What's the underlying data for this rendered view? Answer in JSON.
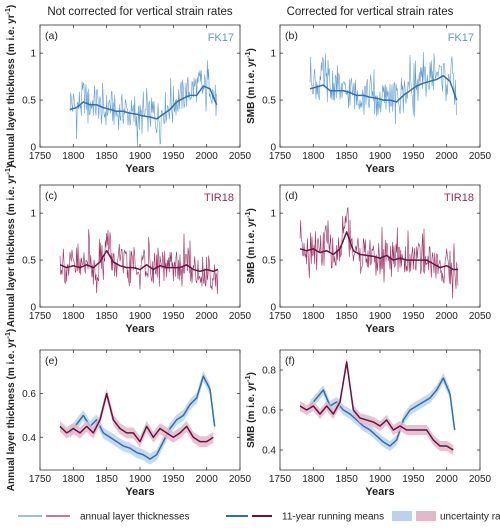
{
  "figure": {
    "column_titles": [
      "Not corrected for vertical strain rates",
      "Corrected for vertical strain rates"
    ],
    "legend": {
      "items": [
        {
          "label": "annual layer thicknesses",
          "kind": "thin-lines"
        },
        {
          "label": "11-year running means",
          "kind": "thick-line"
        },
        {
          "label": "uncertainty ranges",
          "kind": "patches"
        }
      ]
    },
    "colors": {
      "fk17": "#5b9bd5",
      "fk17_mean": "#2f6db5",
      "fk17_band": "#b9d3ee",
      "tir18": "#9b2a5e",
      "tir18_mean": "#6e1040",
      "tir18_band": "#e3b8ca"
    }
  },
  "chart_data": [
    {
      "id": "a",
      "type": "line",
      "panel_label": "(a)",
      "core_label": "FK17",
      "xlabel": "Years",
      "ylabel": "Annual layer thickness (m i.e. yr⁻¹)",
      "xlim": [
        1750,
        2050
      ],
      "ylim": [
        0,
        1.3
      ],
      "xticks": [
        1750,
        1800,
        1850,
        1900,
        1950,
        2000,
        2050
      ],
      "yticks": [
        0,
        0.5,
        1
      ],
      "series": [
        {
          "kind": "annual",
          "color": "fk17",
          "x": [
            1795,
            1805,
            1815,
            1825,
            1835,
            1845,
            1855,
            1865,
            1875,
            1885,
            1895,
            1905,
            1915,
            1925,
            1935,
            1945,
            1955,
            1965,
            1975,
            1985,
            1995,
            2005,
            2015
          ],
          "y": [
            0.5,
            0.4,
            0.55,
            0.45,
            0.5,
            0.35,
            0.45,
            0.35,
            0.4,
            0.35,
            0.3,
            0.3,
            0.35,
            0.3,
            0.4,
            0.45,
            0.5,
            0.55,
            0.6,
            0.65,
            0.6,
            0.7,
            0.45
          ]
        },
        {
          "kind": "mean",
          "color": "fk17_mean",
          "x": [
            1795,
            1805,
            1815,
            1825,
            1835,
            1845,
            1855,
            1865,
            1875,
            1885,
            1895,
            1905,
            1915,
            1925,
            1935,
            1945,
            1955,
            1965,
            1975,
            1985,
            1995,
            2005,
            2015
          ],
          "y": [
            0.4,
            0.42,
            0.48,
            0.45,
            0.45,
            0.42,
            0.4,
            0.38,
            0.38,
            0.36,
            0.35,
            0.33,
            0.32,
            0.3,
            0.35,
            0.4,
            0.48,
            0.52,
            0.55,
            0.55,
            0.65,
            0.62,
            0.45
          ]
        }
      ]
    },
    {
      "id": "b",
      "type": "line",
      "panel_label": "(b)",
      "core_label": "FK17",
      "xlabel": "Years",
      "ylabel": "SMB (m i.e. yr⁻¹)",
      "xlim": [
        1750,
        2050
      ],
      "ylim": [
        0,
        1.3
      ],
      "xticks": [
        1750,
        1800,
        1850,
        1900,
        1950,
        2000,
        2050
      ],
      "yticks": [
        0,
        0.5,
        1
      ],
      "series": [
        {
          "kind": "annual",
          "color": "fk17",
          "x": [
            1795,
            1805,
            1815,
            1825,
            1835,
            1845,
            1855,
            1865,
            1875,
            1885,
            1895,
            1905,
            1915,
            1925,
            1935,
            1945,
            1955,
            1965,
            1975,
            1985,
            1995,
            2005,
            2015
          ],
          "y": [
            0.8,
            0.65,
            0.75,
            0.6,
            0.7,
            0.55,
            0.6,
            0.55,
            0.6,
            0.55,
            0.5,
            0.5,
            0.55,
            0.5,
            0.6,
            0.65,
            0.65,
            0.7,
            0.75,
            0.8,
            0.75,
            0.8,
            0.5
          ]
        },
        {
          "kind": "mean",
          "color": "fk17_mean",
          "x": [
            1795,
            1805,
            1815,
            1825,
            1835,
            1845,
            1855,
            1865,
            1875,
            1885,
            1895,
            1905,
            1915,
            1925,
            1935,
            1945,
            1955,
            1965,
            1975,
            1985,
            1995,
            2005,
            2015
          ],
          "y": [
            0.62,
            0.64,
            0.66,
            0.6,
            0.6,
            0.6,
            0.58,
            0.55,
            0.55,
            0.53,
            0.52,
            0.5,
            0.5,
            0.48,
            0.55,
            0.6,
            0.65,
            0.68,
            0.7,
            0.72,
            0.76,
            0.7,
            0.5
          ]
        }
      ]
    },
    {
      "id": "c",
      "type": "line",
      "panel_label": "(c)",
      "core_label": "TIR18",
      "xlabel": "Years",
      "ylabel": "Annual layer thickness (m i.e. yr⁻¹)",
      "xlim": [
        1750,
        2050
      ],
      "ylim": [
        0,
        1.3
      ],
      "xticks": [
        1750,
        1800,
        1850,
        1900,
        1950,
        2000,
        2050
      ],
      "yticks": [
        0,
        0.5,
        1
      ],
      "series": [
        {
          "kind": "annual",
          "color": "tir18",
          "x": [
            1780,
            1790,
            1800,
            1810,
            1820,
            1830,
            1840,
            1850,
            1860,
            1870,
            1880,
            1890,
            1900,
            1910,
            1920,
            1930,
            1940,
            1950,
            1960,
            1970,
            1980,
            1990,
            2000,
            2010,
            2017
          ],
          "y": [
            0.5,
            0.4,
            0.45,
            0.4,
            0.55,
            0.4,
            0.45,
            0.7,
            0.45,
            0.5,
            0.4,
            0.45,
            0.35,
            0.5,
            0.4,
            0.45,
            0.4,
            0.45,
            0.4,
            0.5,
            0.4,
            0.35,
            0.4,
            0.35,
            0.3
          ]
        },
        {
          "kind": "mean",
          "color": "tir18_mean",
          "x": [
            1780,
            1790,
            1800,
            1810,
            1820,
            1830,
            1840,
            1850,
            1860,
            1870,
            1880,
            1890,
            1900,
            1910,
            1920,
            1930,
            1940,
            1950,
            1960,
            1970,
            1980,
            1990,
            2000,
            2010,
            2017
          ],
          "y": [
            0.45,
            0.42,
            0.44,
            0.42,
            0.45,
            0.42,
            0.48,
            0.6,
            0.48,
            0.44,
            0.42,
            0.42,
            0.4,
            0.45,
            0.4,
            0.44,
            0.42,
            0.42,
            0.42,
            0.45,
            0.4,
            0.38,
            0.4,
            0.38,
            0.4
          ]
        }
      ]
    },
    {
      "id": "d",
      "type": "line",
      "panel_label": "(d)",
      "core_label": "TIR18",
      "xlabel": "Years",
      "ylabel": "SMB (m i.e. yr⁻¹)",
      "xlim": [
        1750,
        2050
      ],
      "ylim": [
        0,
        1.3
      ],
      "xticks": [
        1750,
        1800,
        1850,
        1900,
        1950,
        2000,
        2050
      ],
      "yticks": [
        0,
        0.5,
        1
      ],
      "series": [
        {
          "kind": "annual",
          "color": "tir18",
          "x": [
            1780,
            1790,
            1800,
            1810,
            1820,
            1830,
            1840,
            1850,
            1860,
            1870,
            1880,
            1890,
            1900,
            1910,
            1920,
            1930,
            1940,
            1950,
            1960,
            1970,
            1980,
            1990,
            2000,
            2010,
            2017
          ],
          "y": [
            0.8,
            0.6,
            0.65,
            0.6,
            0.7,
            0.55,
            0.6,
            1.0,
            0.6,
            0.6,
            0.55,
            0.55,
            0.5,
            0.6,
            0.5,
            0.55,
            0.5,
            0.55,
            0.5,
            0.55,
            0.45,
            0.4,
            0.45,
            0.4,
            0.35
          ]
        },
        {
          "kind": "mean",
          "color": "tir18_mean",
          "x": [
            1780,
            1790,
            1800,
            1810,
            1820,
            1830,
            1840,
            1850,
            1860,
            1870,
            1880,
            1890,
            1900,
            1910,
            1920,
            1930,
            1940,
            1950,
            1960,
            1970,
            1980,
            1990,
            2000,
            2010,
            2017
          ],
          "y": [
            0.62,
            0.6,
            0.62,
            0.58,
            0.6,
            0.56,
            0.62,
            0.8,
            0.6,
            0.56,
            0.55,
            0.54,
            0.52,
            0.55,
            0.5,
            0.52,
            0.5,
            0.5,
            0.5,
            0.5,
            0.46,
            0.42,
            0.44,
            0.4,
            0.4
          ]
        }
      ]
    },
    {
      "id": "e",
      "type": "line",
      "panel_label": "(e)",
      "xlabel": "Years",
      "ylabel": "Annual layer thickness (m i.e. yr⁻¹)",
      "xlim": [
        1750,
        2050
      ],
      "ylim": [
        0.25,
        0.8
      ],
      "xticks": [
        1750,
        1800,
        1850,
        1900,
        1950,
        2000,
        2050
      ],
      "yticks": [
        0.4,
        0.6
      ],
      "series": [
        {
          "kind": "mean-band",
          "color": "fk17_mean",
          "band_color": "fk17_band",
          "band_halfwidth": 0.025,
          "x": [
            1795,
            1805,
            1815,
            1825,
            1835,
            1845,
            1855,
            1865,
            1875,
            1885,
            1895,
            1905,
            1915,
            1925,
            1935,
            1945,
            1955,
            1965,
            1975,
            1985,
            1995,
            2005,
            2012
          ],
          "y": [
            0.42,
            0.46,
            0.5,
            0.45,
            0.48,
            0.42,
            0.4,
            0.38,
            0.36,
            0.35,
            0.33,
            0.32,
            0.3,
            0.32,
            0.38,
            0.44,
            0.48,
            0.5,
            0.55,
            0.58,
            0.68,
            0.62,
            0.45
          ]
        },
        {
          "kind": "mean-band",
          "color": "tir18_mean",
          "band_color": "tir18_band",
          "band_halfwidth": 0.025,
          "x": [
            1780,
            1790,
            1800,
            1810,
            1820,
            1830,
            1840,
            1850,
            1860,
            1870,
            1880,
            1890,
            1900,
            1910,
            1920,
            1930,
            1940,
            1950,
            1960,
            1970,
            1980,
            1990,
            2000,
            2010
          ],
          "y": [
            0.45,
            0.42,
            0.44,
            0.42,
            0.45,
            0.42,
            0.48,
            0.6,
            0.48,
            0.44,
            0.42,
            0.42,
            0.38,
            0.45,
            0.4,
            0.44,
            0.42,
            0.4,
            0.42,
            0.45,
            0.4,
            0.38,
            0.38,
            0.4
          ]
        }
      ]
    },
    {
      "id": "f",
      "type": "line",
      "panel_label": "(f)",
      "xlabel": "Years",
      "ylabel": "SMB (m i.e. yr⁻¹)",
      "xlim": [
        1750,
        2050
      ],
      "ylim": [
        0.3,
        0.9
      ],
      "xticks": [
        1750,
        1800,
        1850,
        1900,
        1950,
        2000,
        2050
      ],
      "yticks": [
        0.4,
        0.6,
        0.8
      ],
      "series": [
        {
          "kind": "mean-band",
          "color": "fk17_mean",
          "band_color": "fk17_band",
          "band_halfwidth": 0.025,
          "x": [
            1795,
            1805,
            1815,
            1825,
            1835,
            1845,
            1855,
            1865,
            1875,
            1885,
            1895,
            1905,
            1915,
            1925,
            1935,
            1945,
            1955,
            1965,
            1975,
            1985,
            1995,
            2005,
            2012
          ],
          "y": [
            0.62,
            0.66,
            0.7,
            0.62,
            0.64,
            0.6,
            0.58,
            0.55,
            0.52,
            0.5,
            0.47,
            0.44,
            0.42,
            0.45,
            0.55,
            0.6,
            0.62,
            0.64,
            0.66,
            0.7,
            0.76,
            0.68,
            0.5
          ]
        },
        {
          "kind": "mean-band",
          "color": "tir18_mean",
          "band_color": "tir18_band",
          "band_halfwidth": 0.025,
          "x": [
            1780,
            1790,
            1800,
            1810,
            1820,
            1830,
            1840,
            1850,
            1860,
            1870,
            1880,
            1890,
            1900,
            1910,
            1920,
            1930,
            1940,
            1950,
            1960,
            1970,
            1980,
            1990,
            2000,
            2010
          ],
          "y": [
            0.62,
            0.6,
            0.62,
            0.58,
            0.62,
            0.58,
            0.64,
            0.84,
            0.6,
            0.56,
            0.55,
            0.54,
            0.52,
            0.55,
            0.5,
            0.52,
            0.5,
            0.5,
            0.5,
            0.5,
            0.45,
            0.42,
            0.42,
            0.4
          ]
        }
      ]
    }
  ]
}
